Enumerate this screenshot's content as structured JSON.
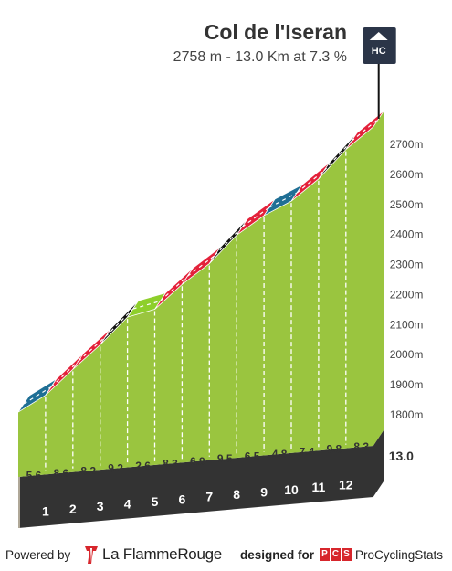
{
  "header": {
    "title": "Col de l'Iseran",
    "subtitle": "2758 m - 13.0 Km at 7.3 %",
    "category_badge": "HC"
  },
  "chart_data": {
    "type": "area",
    "title": "Col de l'Iseran",
    "subtitle": "2758 m - 13.0 Km at 7.3 %",
    "y_unit": "m",
    "y_ticks": [
      1800,
      1900,
      2000,
      2100,
      2200,
      2300,
      2400,
      2500,
      2600,
      2700
    ],
    "y_tick_labels": [
      "1800m",
      "1900m",
      "2000m",
      "2100m",
      "2200m",
      "2300m",
      "2400m",
      "2500m",
      "2600m",
      "2700m"
    ],
    "ylim": [
      1720,
      2770
    ],
    "x_km": [
      0,
      1,
      2,
      3,
      4,
      5,
      6,
      7,
      8,
      9,
      10,
      11,
      12,
      13
    ],
    "elevation": [
      1809,
      1865,
      1951,
      2033,
      2125,
      2151,
      2234,
      2303,
      2398,
      2463,
      2511,
      2585,
      2683,
      2758
    ],
    "km_markers": [
      "1",
      "2",
      "3",
      "4",
      "5",
      "6",
      "7",
      "8",
      "9",
      "10",
      "11",
      "12"
    ],
    "km_end_label": "13.0",
    "gradients": [
      5.6,
      8.6,
      8.2,
      9.2,
      2.6,
      8.3,
      6.9,
      9.5,
      6.5,
      4.8,
      7.4,
      9.8,
      8.3
    ],
    "gradient_labels": [
      "5.6",
      "8.6",
      "8.2",
      "9.2",
      "2.6",
      "8.3",
      "6.9",
      "9.5",
      "6.5",
      "4.8",
      "7.4",
      "9.8",
      "8.3"
    ],
    "gradient_colors": {
      "low": "#1f6f95",
      "easy": "#8ecf2b",
      "steep": "#e3213a",
      "very_steep": "#111111"
    },
    "gradient_thresholds": [
      3,
      6,
      9
    ],
    "colors": {
      "fill": "#9ac53f",
      "grid": "#6b7a30",
      "base": "#333333",
      "base_side": "#b0a898",
      "summit_line": "#111111"
    }
  },
  "footer": {
    "powered_by": "Powered by",
    "brand_prefix": "La Flamme",
    "brand_suffix": "Rouge",
    "designed_for": "designed for",
    "pcs_letters": [
      "P",
      "C",
      "S"
    ],
    "pcs_name": "ProCyclingStats"
  }
}
